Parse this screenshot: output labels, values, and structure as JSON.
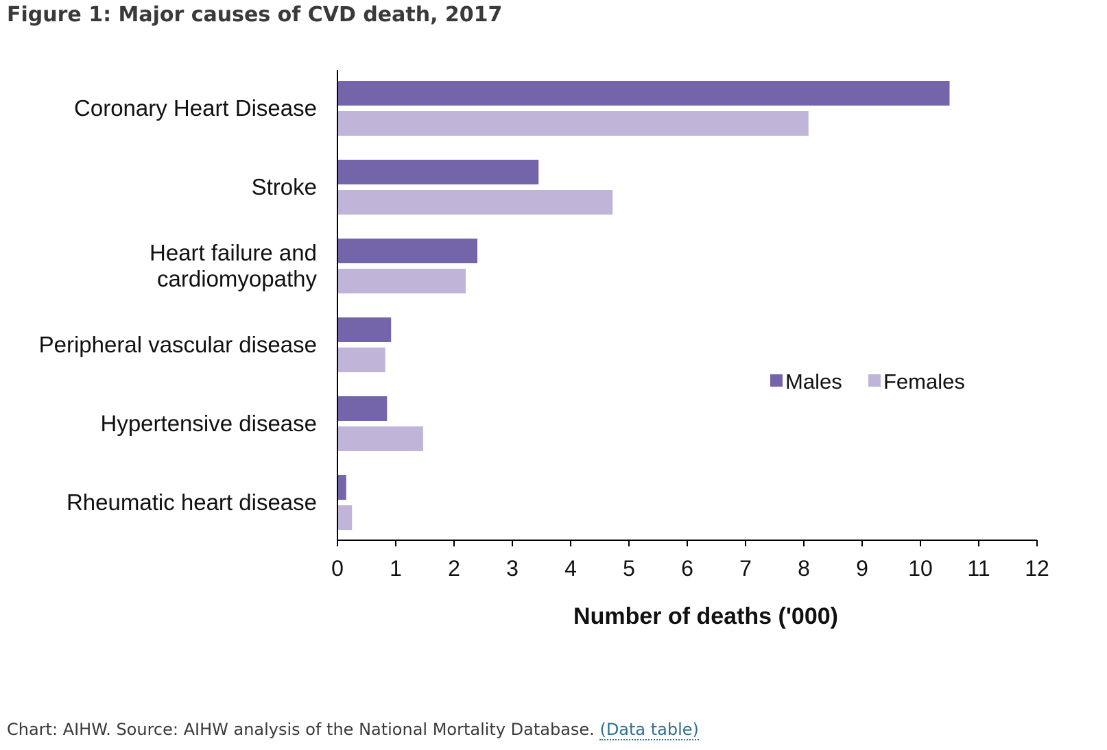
{
  "figure": {
    "title": "Figure 1: Major causes of CVD death, 2017"
  },
  "caption": {
    "text": "Chart: AIHW. Source: AIHW analysis of the National Mortality Database.",
    "link_label": "(Data table)"
  },
  "chart_data": {
    "type": "bar",
    "orientation": "horizontal",
    "categories": [
      [
        "Coronary Heart Disease"
      ],
      [
        "Stroke"
      ],
      [
        "Heart failure and",
        "cardiomyopathy"
      ],
      [
        "Peripheral vascular disease"
      ],
      [
        "Hypertensive disease"
      ],
      [
        "Rheumatic heart disease"
      ]
    ],
    "series": [
      {
        "name": "Males",
        "color": "#7464a9",
        "values": [
          10.5,
          3.45,
          2.4,
          0.92,
          0.85,
          0.15
        ]
      },
      {
        "name": "Females",
        "color": "#c0b5d9",
        "values": [
          8.08,
          4.72,
          2.2,
          0.82,
          1.47,
          0.25
        ]
      }
    ],
    "xlabel": "Number of deaths ('000)",
    "ylabel": "",
    "xlim": [
      0,
      12
    ],
    "xticks": [
      0,
      1,
      2,
      3,
      4,
      5,
      6,
      7,
      8,
      9,
      10,
      11,
      12
    ],
    "grid": false,
    "legend_position": "right"
  }
}
